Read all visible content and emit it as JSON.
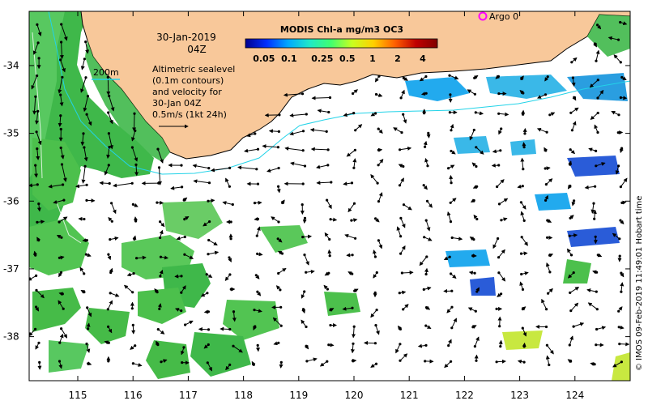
{
  "map": {
    "date_line": "30-Jan-2019",
    "time_line": "04Z",
    "isobath_label": "200m",
    "description_lines": [
      "Altimetric sealevel",
      "(0.1m contours)",
      "and velocity for",
      "30-Jan 04Z",
      "0.5m/s (1kt 24h)"
    ],
    "argo_label": "Argo 0",
    "credit": "© IMOS 09-Feb-2019 11:49:01 Hobart time",
    "longitude_ticks": [
      "115",
      "116",
      "117",
      "118",
      "119",
      "120",
      "121",
      "122",
      "123",
      "124"
    ],
    "latitude_ticks": [
      "-34",
      "-35",
      "-36",
      "-37",
      "-38"
    ],
    "colors": {
      "land": "#f8c89a",
      "coastline": "#000000",
      "ocean_background": "#ffffff",
      "isobath": "#22d3e8",
      "argo_marker": "#ff00ff",
      "high_chl": "#4cc04c",
      "mid_chl": "#22aaee",
      "low_chl": "#2a5cd8"
    }
  },
  "colorbar": {
    "title": "MODIS Chl-a mg/m3 OC3",
    "tick_labels": [
      "0.05",
      "0.1",
      "0.25",
      "0.5",
      "1",
      "2",
      "4"
    ],
    "gradient_colors": [
      "#00008f",
      "#0030ff",
      "#00a8ff",
      "#20e8c8",
      "#40ff70",
      "#c8ff20",
      "#ffd000",
      "#ff6000",
      "#c00000",
      "#800000"
    ]
  }
}
